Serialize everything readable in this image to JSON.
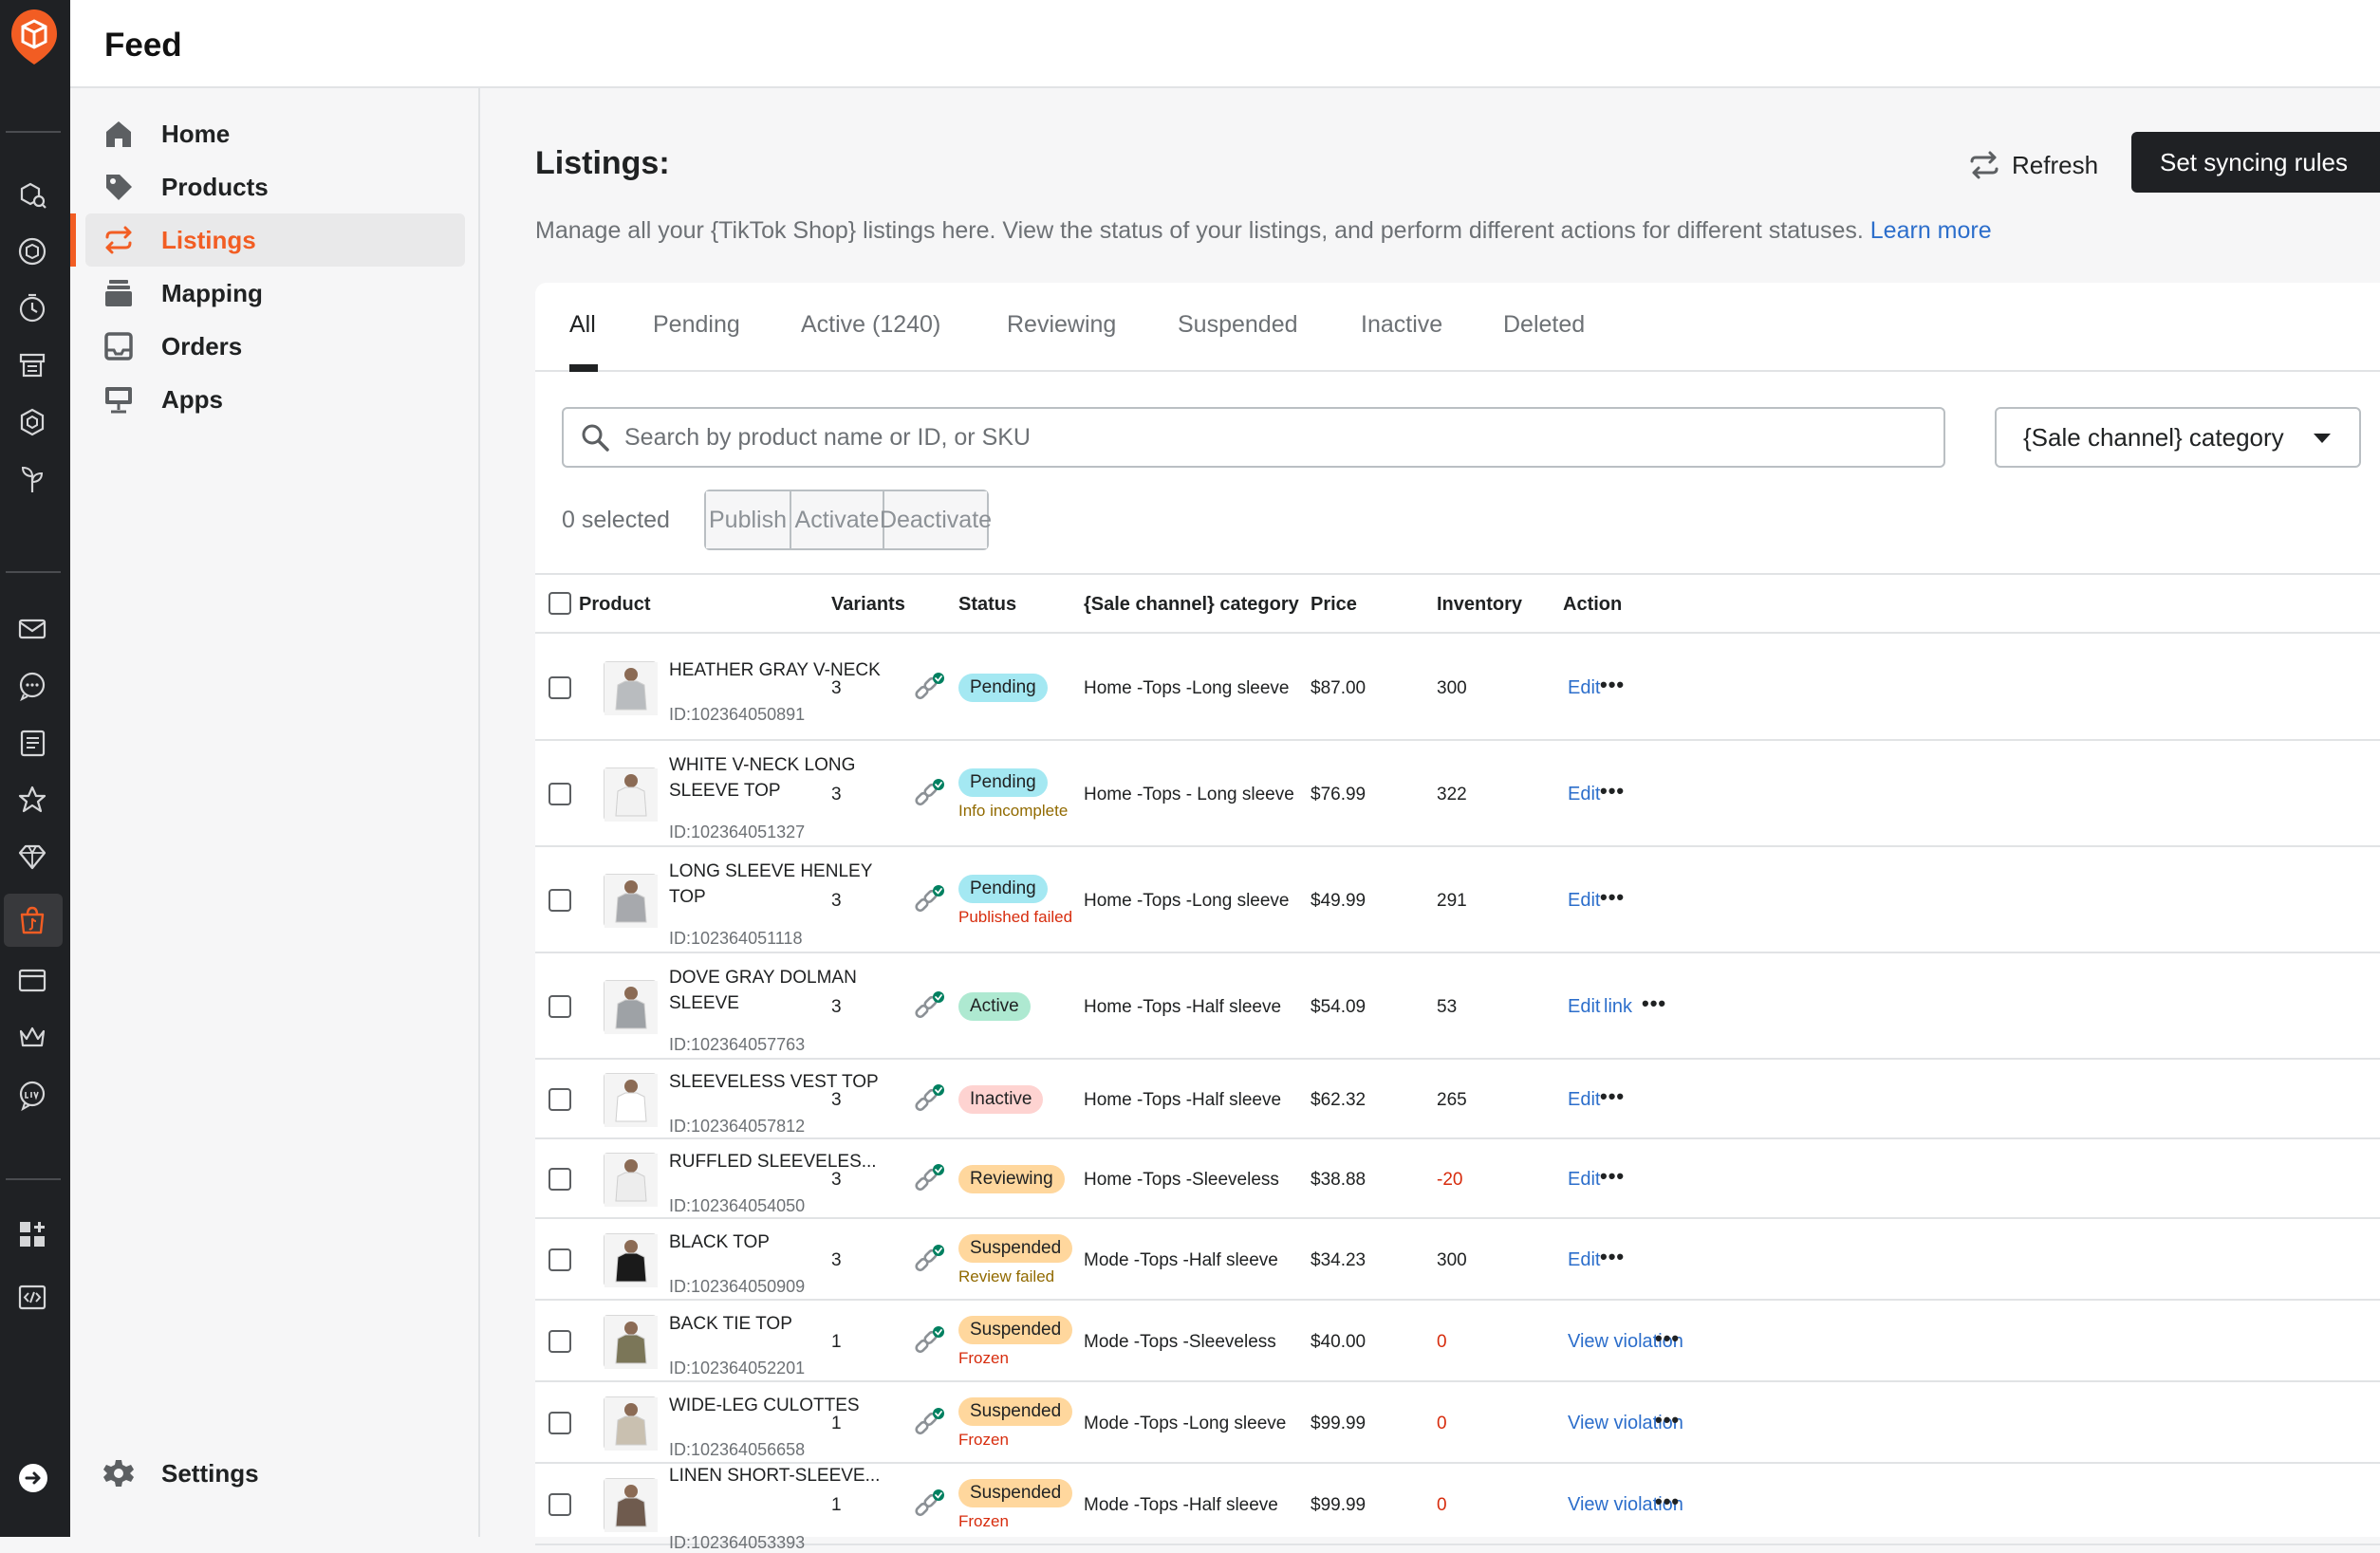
{
  "app": {
    "title": "Feed"
  },
  "nav": {
    "items": [
      {
        "label": "Home",
        "icon": "home-icon"
      },
      {
        "label": "Products",
        "icon": "tag-icon"
      },
      {
        "label": "Listings",
        "icon": "sync-icon"
      },
      {
        "label": "Mapping",
        "icon": "layers-icon"
      },
      {
        "label": "Orders",
        "icon": "inbox-icon"
      },
      {
        "label": "Apps",
        "icon": "storefront-icon"
      }
    ],
    "settings": "Settings"
  },
  "header": {
    "title": "Listings:",
    "refresh_label": "Refresh",
    "sync_label": "Set syncing rules",
    "description": "Manage all your {TikTok Shop} listings here. View the status of your listings, and perform different actions for different statuses.",
    "learn_more": "Learn more"
  },
  "tabs": [
    "All",
    "Pending",
    "Active (1240)",
    "Reviewing",
    "Suspended",
    "Inactive",
    "Deleted"
  ],
  "filters": {
    "search_placeholder": "Search by product name or ID, or SKU",
    "category_label": "{Sale channel} category"
  },
  "bulk": {
    "selected": "0 selected",
    "publish": "Publish",
    "activate": "Activate",
    "deactivate": "Deactivate"
  },
  "columns": {
    "product": "Product",
    "variants": "Variants",
    "status": "Status",
    "category": "{Sale channel} category",
    "price": "Price",
    "inventory": "Inventory",
    "action": "Action"
  },
  "rows": [
    {
      "name": "HEATHER GRAY V-NECK",
      "id": "ID:102364050891",
      "variants": "3",
      "status": "Pending",
      "status_type": "pending",
      "sub": "",
      "category": "Home -Tops -Long sleeve",
      "price": "$87.00",
      "inventory": "300",
      "action": "Edit",
      "action2": ""
    },
    {
      "name": "WHITE V-NECK LONG SLEEVE TOP",
      "id": "ID:102364051327",
      "variants": "3",
      "status": "Pending",
      "status_type": "pending",
      "sub": "Info incomplete",
      "category": "Home -Tops - Long sleeve",
      "price": "$76.99",
      "inventory": "322",
      "action": "Edit",
      "action2": ""
    },
    {
      "name": "LONG SLEEVE HENLEY TOP",
      "id": "ID:102364051118",
      "variants": "3",
      "status": "Pending",
      "status_type": "pending",
      "sub": "Published failed",
      "category": "Home -Tops -Long sleeve",
      "price": "$49.99",
      "inventory": "291",
      "action": "Edit",
      "action2": ""
    },
    {
      "name": "DOVE GRAY DOLMAN SLEEVE",
      "id": "ID:102364057763",
      "variants": "3",
      "status": "Active",
      "status_type": "active",
      "sub": "",
      "category": "Home -Tops -Half sleeve",
      "price": "$54.09",
      "inventory": "53",
      "action": "Edit",
      "action2": "link"
    },
    {
      "name": "SLEEVELESS VEST TOP",
      "id": "ID:102364057812",
      "variants": "3",
      "status": "Inactive",
      "status_type": "inactive",
      "sub": "",
      "category": "Home -Tops -Half sleeve",
      "price": "$62.32",
      "inventory": "265",
      "action": "Edit",
      "action2": ""
    },
    {
      "name": "RUFFLED SLEEVELES...",
      "id": "ID:102364054050",
      "variants": "3",
      "status": "Reviewing",
      "status_type": "reviewing",
      "sub": "",
      "category": "Home -Tops -Sleeveless",
      "price": "$38.88",
      "inventory": "-20",
      "action": "Edit",
      "action2": ""
    },
    {
      "name": "BLACK TOP",
      "id": "ID:102364050909",
      "variants": "3",
      "status": "Suspended",
      "status_type": "suspended",
      "sub": "Review failed",
      "category": "Mode -Tops -Half sleeve",
      "price": "$34.23",
      "inventory": "300",
      "action": "Edit",
      "action2": ""
    },
    {
      "name": "BACK TIE TOP",
      "id": "ID:102364052201",
      "variants": "1",
      "status": "Suspended",
      "status_type": "suspended",
      "sub": "Frozen",
      "category": "Mode -Tops -Sleeveless",
      "price": "$40.00",
      "inventory": "0",
      "action": "View violation",
      "action2": ""
    },
    {
      "name": "WIDE-LEG CULOTTES",
      "id": "ID:102364056658",
      "variants": "1",
      "status": "Suspended",
      "status_type": "suspended",
      "sub": "Frozen",
      "category": "Mode -Tops -Long sleeve",
      "price": "$99.99",
      "inventory": "0",
      "action": "View violation",
      "action2": ""
    },
    {
      "name": "LINEN SHORT-SLEEVE...",
      "id": "ID:102364053393",
      "variants": "1",
      "status": "Suspended",
      "status_type": "suspended",
      "sub": "Frozen",
      "category": "Mode -Tops -Half sleeve",
      "price": "$99.99",
      "inventory": "0",
      "action": "View violation",
      "action2": ""
    }
  ],
  "colors": {
    "accent": "#f25d23",
    "link": "#2c6ecb",
    "rail": "#1f2124",
    "danger": "#d72c0d",
    "success": "#008060"
  }
}
